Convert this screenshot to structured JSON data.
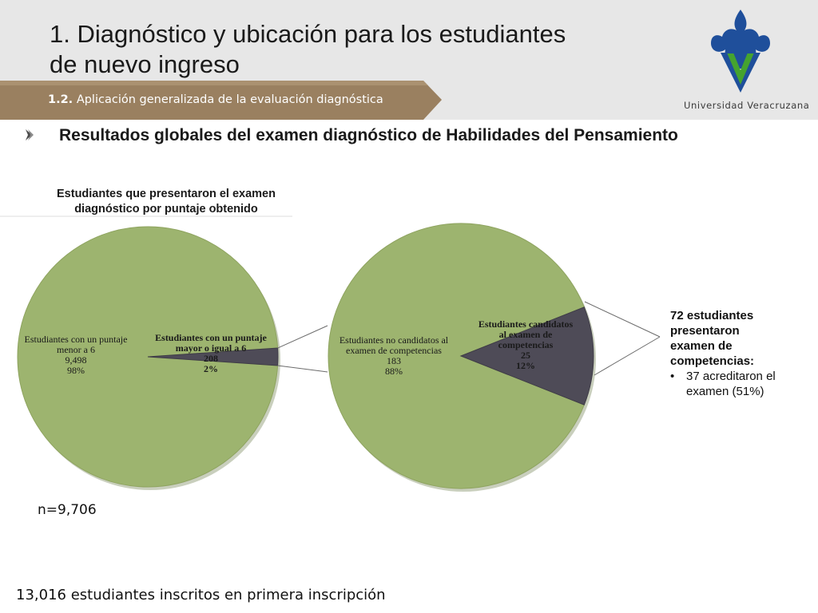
{
  "header": {
    "title_line1": "1. Diagnóstico y ubicación para los estudiantes",
    "title_line2": "de nuevo ingreso",
    "subtitle_number": "1.2.",
    "subtitle_text": "Aplicación generalizada de la evaluación diagnóstica",
    "logo_text": "Universidad Veracruzana"
  },
  "section_heading": "Resultados globales del examen diagnóstico de Habilidades del Pensamiento",
  "chart_title_line1": "Estudiantes que presentaron el examen",
  "chart_title_line2": "diagnóstico por puntaje obtenido",
  "colors": {
    "green": "#9db46f",
    "dark": "#4e4b57",
    "bar": "#9a8060"
  },
  "chart_data": [
    {
      "type": "pie",
      "title": "Estudiantes que presentaron el examen diagnóstico por puntaje obtenido",
      "slices": [
        {
          "label_lines": [
            "Estudiantes con un puntaje",
            "menor a 6"
          ],
          "value": 9498,
          "value_text": "9,498",
          "percent_text": "98%",
          "color": "#9db46f"
        },
        {
          "label_lines": [
            "Estudiantes con un puntaje",
            "mayor o igual a 6"
          ],
          "value": 208,
          "value_text": "208",
          "percent_text": "2%",
          "color": "#4e4b57"
        }
      ]
    },
    {
      "type": "pie",
      "title": "",
      "slices": [
        {
          "label_lines": [
            "Estudiantes no candidatos al",
            "examen de competencias"
          ],
          "value": 183,
          "value_text": "183",
          "percent_text": "88%",
          "color": "#9db46f"
        },
        {
          "label_lines": [
            "Estudiantes candidatos",
            "al examen de",
            "competencias"
          ],
          "value": 25,
          "value_text": "25",
          "percent_text": "12%",
          "color": "#4e4b57"
        }
      ]
    }
  ],
  "side_note": {
    "line1": "72 estudiantes",
    "line2": "presentaron",
    "line3": "examen de",
    "line4": "competencias:",
    "bullet_char": "•",
    "bullet_line1": "37 acreditaron el",
    "bullet_line2": "examen (51%)"
  },
  "n_label": "n=9,706",
  "footer": "13,016 estudiantes inscritos en primera inscripción"
}
